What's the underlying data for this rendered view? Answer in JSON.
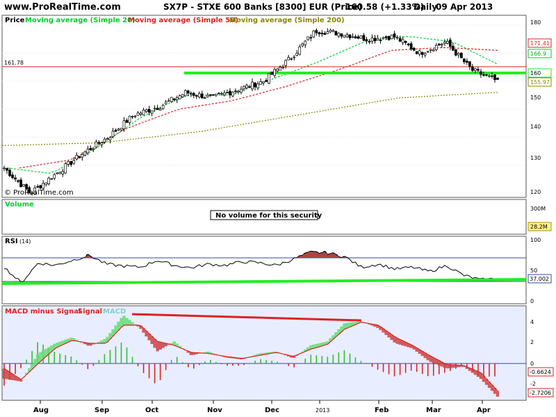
{
  "header": {
    "watermark": "www.ProRealTime.com",
    "title": "SX7P - STXE 600 Banks [8300] EUR (Price)",
    "last_value": "160.58 (+1.33%)",
    "period": "Daily",
    "date": "09 Apr 2013"
  },
  "price_panel": {
    "legend": {
      "price": "Price",
      "ma20": "Moving average (Simple 20)",
      "ma50": "Moving average (Simple 50)",
      "ma200": "Moving average (Simple 200)"
    },
    "level_label": "161.78",
    "copyright": "© ProRealTime.com",
    "y_ticks": [
      "180",
      "170",
      "160",
      "150",
      "140",
      "130",
      "120"
    ],
    "badges": [
      "171.41",
      "166.9",
      "160",
      "155.97"
    ]
  },
  "volume_panel": {
    "legend": "Volume",
    "message": "No volume for this security",
    "y_tick": "300M",
    "badge": "28.2M"
  },
  "rsi_panel": {
    "legend": "RSI",
    "legend_param": "(14)",
    "y_ticks": [
      "100",
      "50",
      "0"
    ],
    "badge": "37.002"
  },
  "macd_panel": {
    "legend_macd_minus_signal": "MACD minus Signal",
    "legend_signal": "Signal",
    "legend_macd": "MACD",
    "y_ticks": [
      "4",
      "2",
      "0",
      "-2"
    ],
    "badges": [
      "-0.6624",
      "-2.7206"
    ]
  },
  "x_axis": {
    "labels": [
      "Aug",
      "Sep",
      "Oct",
      "Nov",
      "Dec",
      "2013",
      "Feb",
      "Mar",
      "Apr"
    ]
  },
  "colors": {
    "ma20": "#00cc33",
    "ma50": "#dd2222",
    "ma200": "#888800",
    "support_line": "#22ee22",
    "level_line": "#cc2222",
    "macd_positive": "#33bb33",
    "macd_negative": "#dd2222",
    "panel_bg": "#ffffff",
    "macd_bg": "#e8eeff"
  },
  "chart_data": [
    {
      "type": "candlestick",
      "title": "SX7P - STXE 600 Banks [8300] EUR (Price)",
      "x": [
        "Aug",
        "Sep",
        "Oct",
        "Nov",
        "Dec",
        "2013",
        "Feb",
        "Mar",
        "Apr"
      ],
      "close_approx": [
        129,
        120,
        127,
        134,
        140,
        148,
        151,
        156,
        154,
        157,
        160,
        168,
        178,
        177,
        175,
        176,
        170,
        174,
        164,
        160
      ],
      "ma20_approx": [
        129,
        127,
        136,
        147,
        155,
        155,
        161,
        167,
        174,
        176,
        174,
        166
      ],
      "ma50_approx": [
        129,
        132,
        143,
        150,
        153,
        158,
        164,
        171,
        172,
        171
      ],
      "ma200_approx": [
        137,
        138,
        142,
        148,
        154,
        156
      ],
      "ylim": [
        119,
        183
      ],
      "y_ticks": [
        120,
        130,
        140,
        150,
        160,
        170,
        180
      ],
      "level": 161.78,
      "last": 160.58
    },
    {
      "type": "line",
      "title": "RSI (14)",
      "ylim": [
        0,
        100
      ],
      "y_ticks": [
        0,
        50,
        100
      ],
      "overbought": 70,
      "oversold": 30,
      "last": 37.002
    },
    {
      "type": "line",
      "title": "MACD minus Signal / Signal / MACD",
      "ylim": [
        -3.5,
        5
      ],
      "y_ticks": [
        -2,
        0,
        2,
        4
      ],
      "last_histogram": -0.6624,
      "last_signal": -2.7206
    }
  ]
}
